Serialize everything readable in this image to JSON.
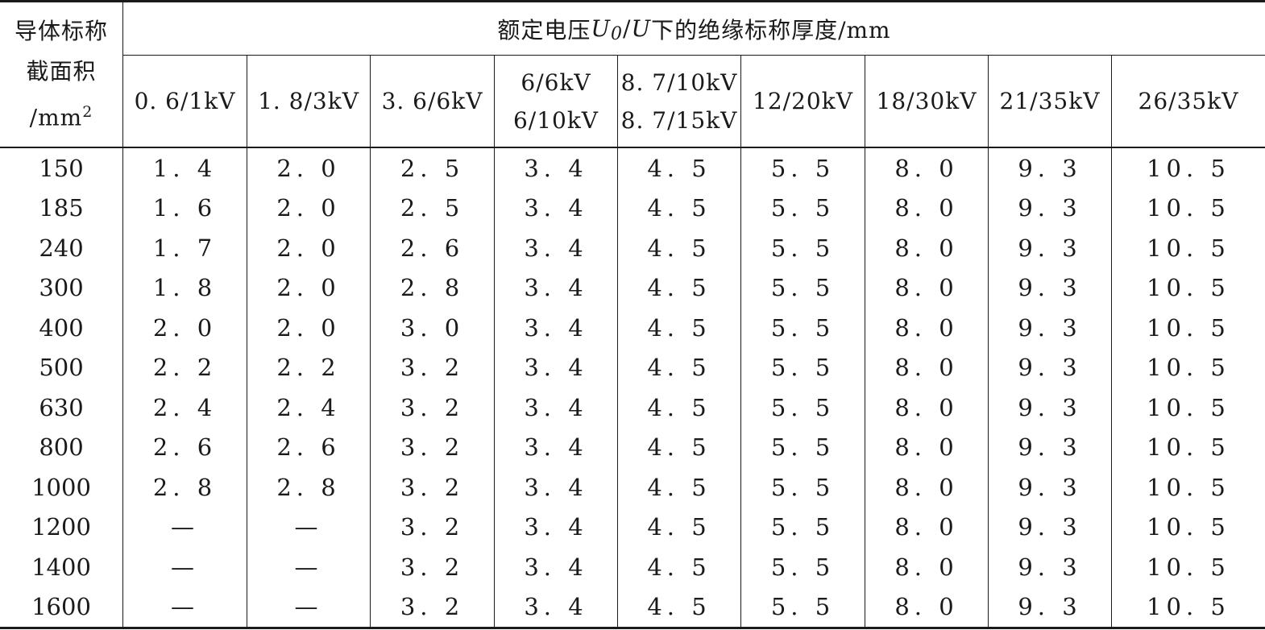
{
  "table": {
    "row_header": {
      "line1": "导体标称",
      "line2": "截面积",
      "line3_prefix": "/mm",
      "line3_sup": "2"
    },
    "group_header": {
      "prefix": "额定电压 ",
      "u0": "U",
      "u0_sub": "0",
      "slash": "/",
      "u": "U",
      "suffix": " 下的绝缘标称厚度/mm"
    },
    "columns": [
      {
        "line1": "0. 6/1kV"
      },
      {
        "line1": "1. 8/3kV"
      },
      {
        "line1": "3. 6/6kV"
      },
      {
        "line1": "6/6kV",
        "line2": "6/10kV"
      },
      {
        "line1": "8. 7/10kV",
        "line2": "8. 7/15kV"
      },
      {
        "line1": "12/20kV"
      },
      {
        "line1": "18/30kV"
      },
      {
        "line1": "21/35kV"
      },
      {
        "line1": "26/35kV"
      }
    ],
    "rows": [
      {
        "area": "150",
        "values": [
          "1. 4",
          "2. 0",
          "2. 5",
          "3. 4",
          "4. 5",
          "5. 5",
          "8. 0",
          "9. 3",
          "10. 5"
        ]
      },
      {
        "area": "185",
        "values": [
          "1. 6",
          "2. 0",
          "2. 5",
          "3. 4",
          "4. 5",
          "5. 5",
          "8. 0",
          "9. 3",
          "10. 5"
        ]
      },
      {
        "area": "240",
        "values": [
          "1. 7",
          "2. 0",
          "2. 6",
          "3. 4",
          "4. 5",
          "5. 5",
          "8. 0",
          "9. 3",
          "10. 5"
        ]
      },
      {
        "area": "300",
        "values": [
          "1. 8",
          "2. 0",
          "2. 8",
          "3. 4",
          "4. 5",
          "5. 5",
          "8. 0",
          "9. 3",
          "10. 5"
        ]
      },
      {
        "area": "400",
        "values": [
          "2. 0",
          "2. 0",
          "3. 0",
          "3. 4",
          "4. 5",
          "5. 5",
          "8. 0",
          "9. 3",
          "10. 5"
        ]
      },
      {
        "area": "500",
        "values": [
          "2. 2",
          "2. 2",
          "3. 2",
          "3. 4",
          "4. 5",
          "5. 5",
          "8. 0",
          "9. 3",
          "10. 5"
        ]
      },
      {
        "area": "630",
        "values": [
          "2. 4",
          "2. 4",
          "3. 2",
          "3. 4",
          "4. 5",
          "5. 5",
          "8. 0",
          "9. 3",
          "10. 5"
        ]
      },
      {
        "area": "800",
        "values": [
          "2. 6",
          "2. 6",
          "3. 2",
          "3. 4",
          "4. 5",
          "5. 5",
          "8. 0",
          "9. 3",
          "10. 5"
        ]
      },
      {
        "area": "1000",
        "values": [
          "2. 8",
          "2. 8",
          "3. 2",
          "3. 4",
          "4. 5",
          "5. 5",
          "8. 0",
          "9. 3",
          "10. 5"
        ]
      },
      {
        "area": "1200",
        "values": [
          "—",
          "—",
          "3. 2",
          "3. 4",
          "4. 5",
          "5. 5",
          "8. 0",
          "9. 3",
          "10. 5"
        ]
      },
      {
        "area": "1400",
        "values": [
          "—",
          "—",
          "3. 2",
          "3. 4",
          "4. 5",
          "5. 5",
          "8. 0",
          "9. 3",
          "10. 5"
        ]
      },
      {
        "area": "1600",
        "values": [
          "—",
          "—",
          "3. 2",
          "3. 4",
          "4. 5",
          "5. 5",
          "8. 0",
          "9. 3",
          "10. 5"
        ]
      }
    ]
  }
}
